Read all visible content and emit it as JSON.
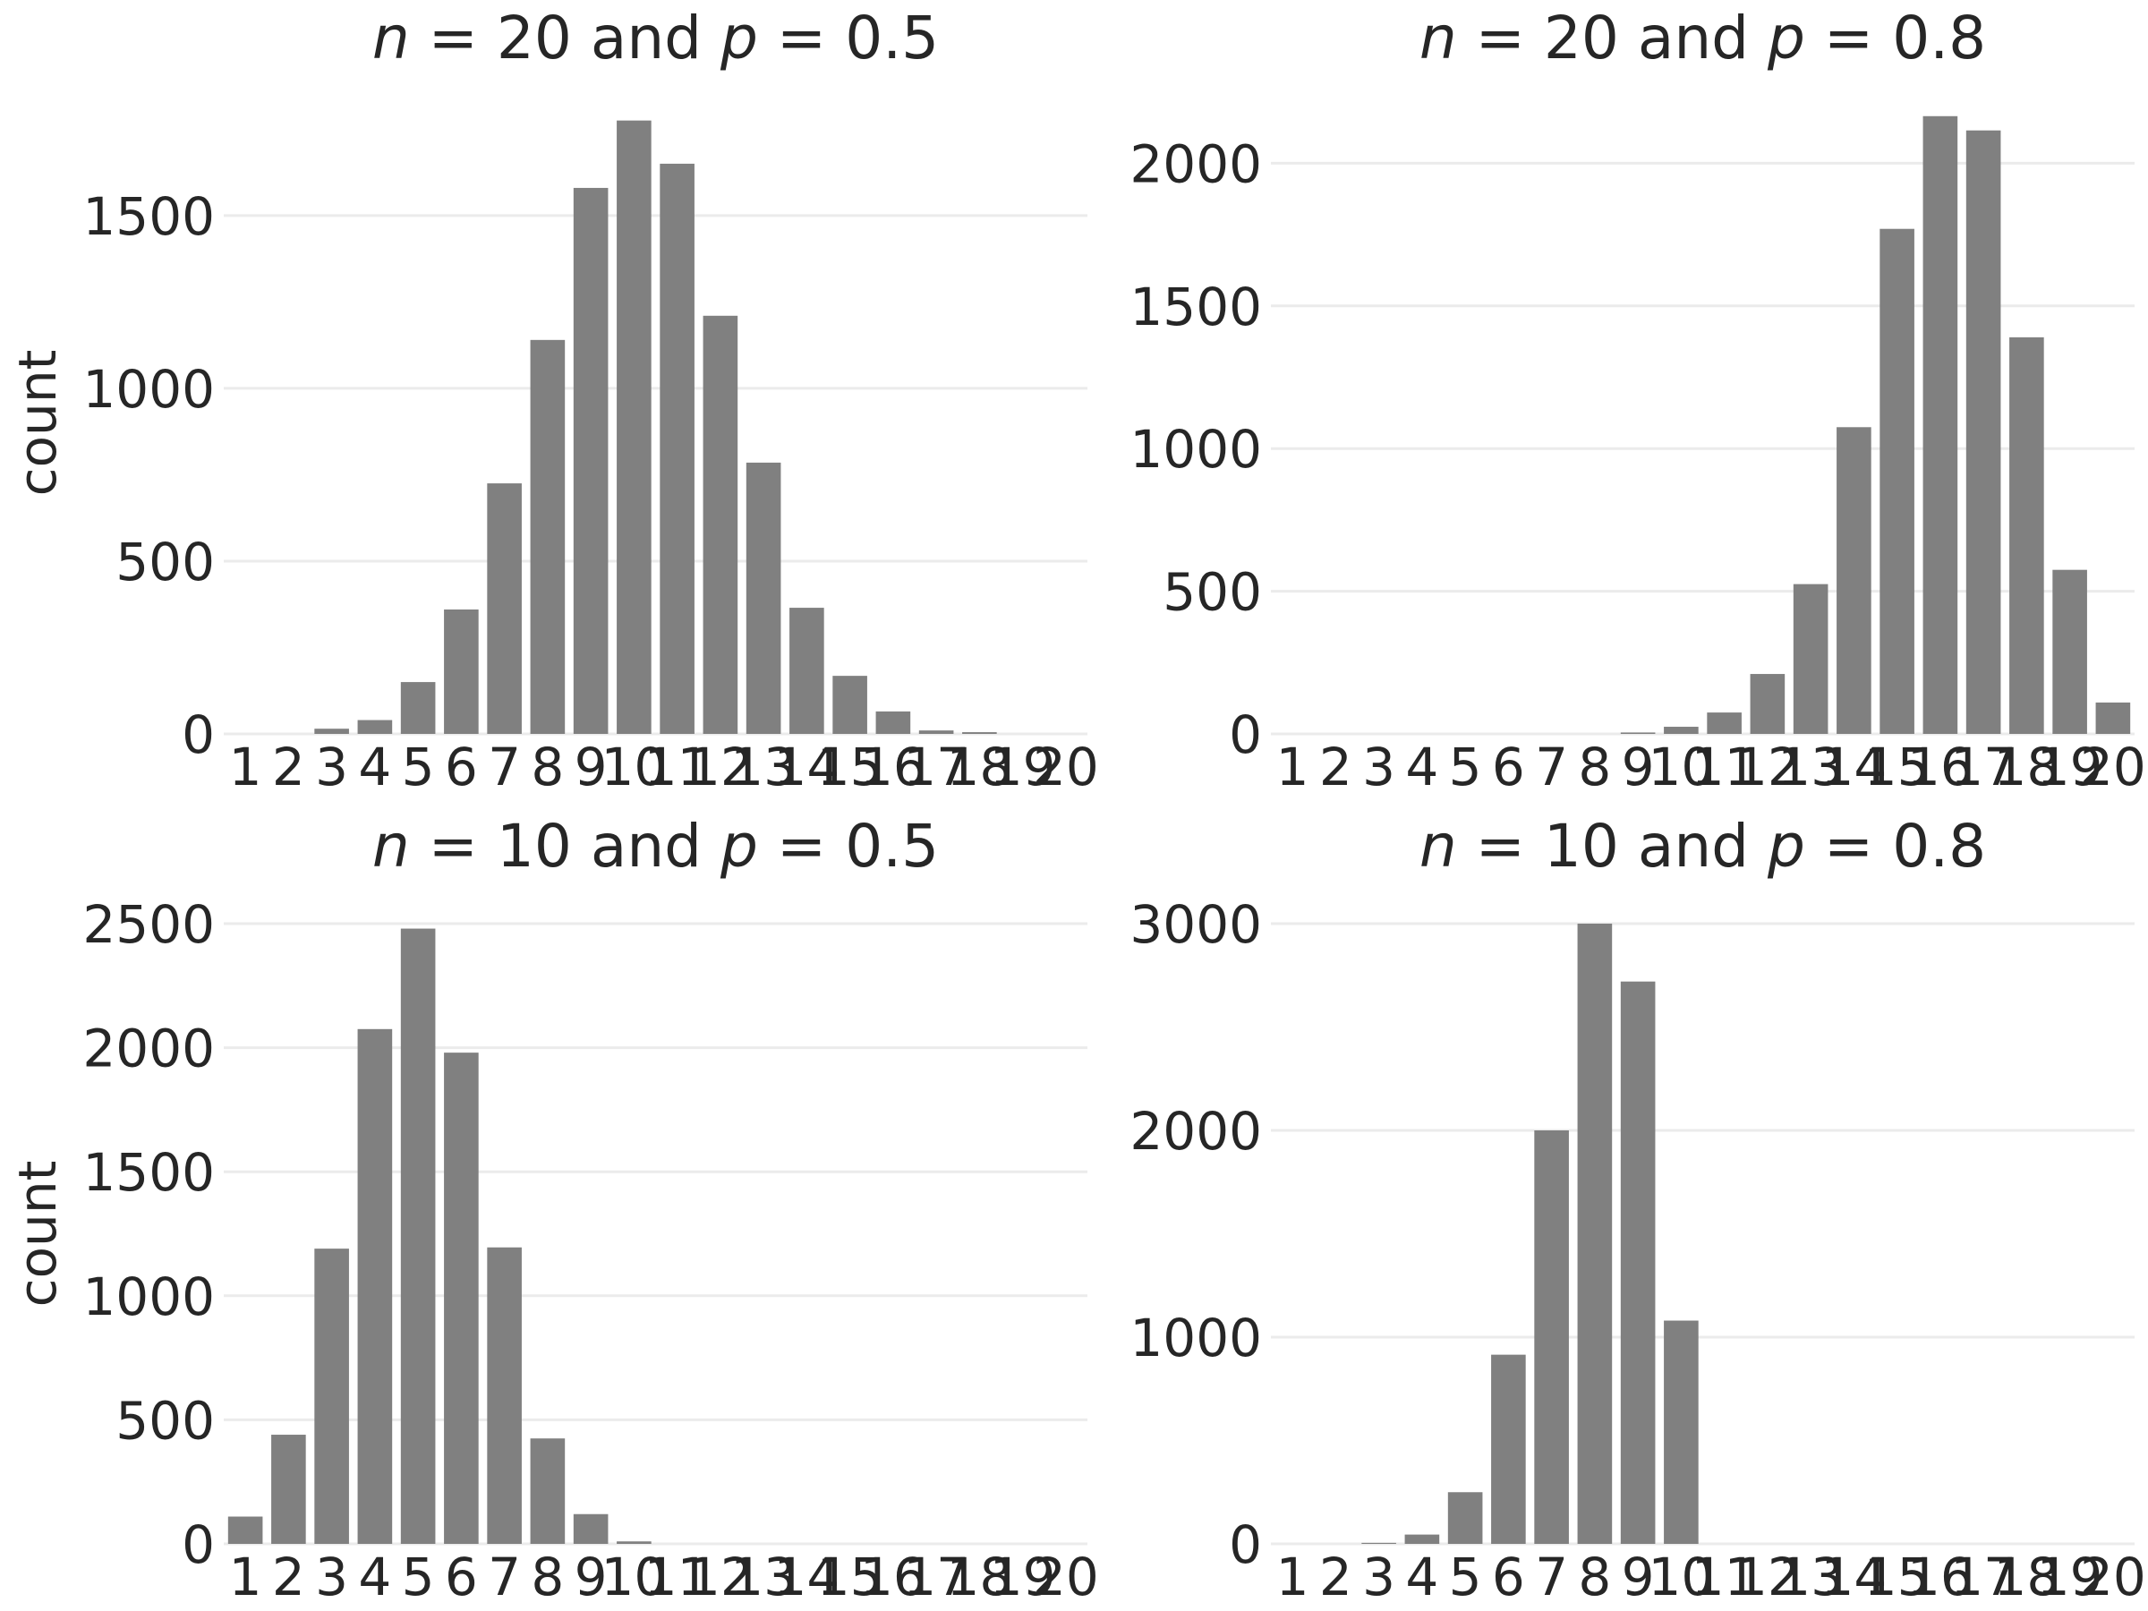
{
  "chart_data": [
    {
      "type": "bar",
      "title_parts": [
        "n",
        " = 20 and ",
        "p",
        " = 0.5"
      ],
      "ylabel": "count",
      "categories": [
        "1",
        "2",
        "3",
        "4",
        "5",
        "6",
        "7",
        "8",
        "9",
        "10",
        "11",
        "12",
        "13",
        "14",
        "15",
        "16",
        "17",
        "18",
        "19",
        "20"
      ],
      "values": [
        0,
        0,
        15,
        40,
        150,
        360,
        725,
        1140,
        1580,
        1775,
        1650,
        1210,
        785,
        365,
        168,
        65,
        10,
        5,
        0,
        0
      ],
      "yticks": [
        0,
        500,
        1000,
        1500
      ],
      "ylim": [
        0,
        1800
      ],
      "bar_color": "#808080",
      "grid": true
    },
    {
      "type": "bar",
      "title_parts": [
        "n",
        " = 20 and ",
        "p",
        " = 0.8"
      ],
      "ylabel": "",
      "categories": [
        "1",
        "2",
        "3",
        "4",
        "5",
        "6",
        "7",
        "8",
        "9",
        "10",
        "11",
        "12",
        "13",
        "14",
        "15",
        "16",
        "17",
        "18",
        "19",
        "20"
      ],
      "values": [
        0,
        0,
        0,
        0,
        0,
        0,
        0,
        0,
        5,
        25,
        75,
        210,
        525,
        1075,
        1770,
        2165,
        2115,
        1390,
        575,
        110
      ],
      "yticks": [
        0,
        500,
        1000,
        1500,
        2000
      ],
      "ylim": [
        0,
        2180
      ],
      "bar_color": "#808080",
      "grid": true
    },
    {
      "type": "bar",
      "title_parts": [
        "n",
        " = 10 and ",
        "p",
        " = 0.5"
      ],
      "ylabel": "count",
      "categories": [
        "1",
        "2",
        "3",
        "4",
        "5",
        "6",
        "7",
        "8",
        "9",
        "10",
        "11",
        "12",
        "13",
        "14",
        "15",
        "16",
        "17",
        "18",
        "19",
        "20"
      ],
      "values": [
        110,
        440,
        1190,
        2075,
        2480,
        1980,
        1195,
        425,
        120,
        10,
        0,
        0,
        0,
        0,
        0,
        0,
        0,
        0,
        0,
        0
      ],
      "yticks": [
        0,
        500,
        1000,
        1500,
        2000,
        2500
      ],
      "ylim": [
        0,
        2500
      ],
      "bar_color": "#808080",
      "grid": true
    },
    {
      "type": "bar",
      "title_parts": [
        "n",
        " = 10 and ",
        "p",
        " = 0.8"
      ],
      "ylabel": "",
      "categories": [
        "1",
        "2",
        "3",
        "4",
        "5",
        "6",
        "7",
        "8",
        "9",
        "10",
        "11",
        "12",
        "13",
        "14",
        "15",
        "16",
        "17",
        "18",
        "19",
        "20"
      ],
      "values": [
        0,
        0,
        5,
        45,
        250,
        915,
        2000,
        3000,
        2720,
        1080,
        0,
        0,
        0,
        0,
        0,
        0,
        0,
        0,
        0,
        0
      ],
      "yticks": [
        0,
        1000,
        2000,
        3000
      ],
      "ylim": [
        0,
        3000
      ],
      "bar_color": "#808080",
      "grid": true
    }
  ]
}
